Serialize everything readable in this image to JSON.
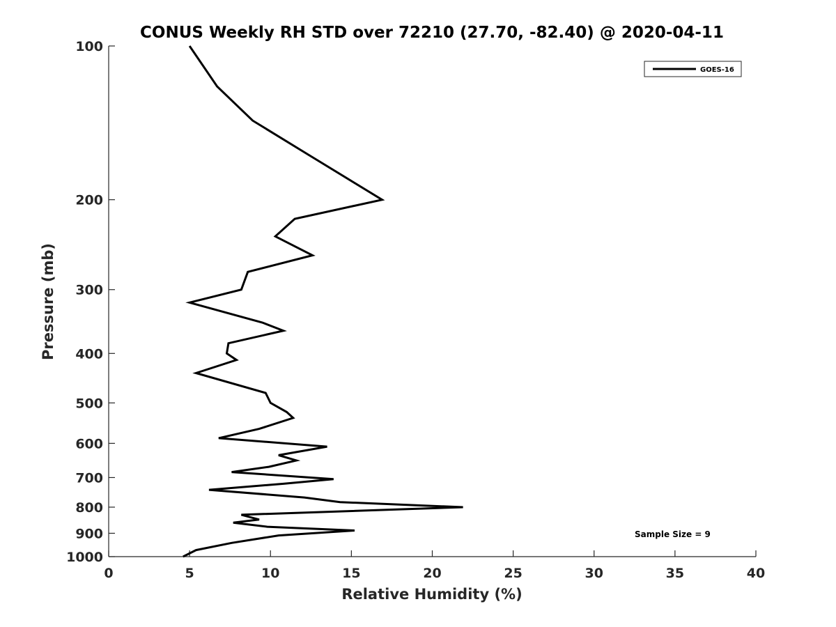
{
  "chart_data": {
    "type": "line",
    "title": "CONUS Weekly RH STD over 72210 (27.70, -82.40) @ 2020-04-11",
    "xlabel": "Relative Humidity (%)",
    "ylabel": "Pressure (mb)",
    "xlim": [
      0,
      40
    ],
    "ylim": [
      100,
      1000
    ],
    "yscale": "log",
    "y_reversed": true,
    "xticks": [
      "0",
      "5",
      "10",
      "15",
      "20",
      "25",
      "30",
      "35",
      "40"
    ],
    "yticks": [
      "100",
      "200",
      "300",
      "400",
      "500",
      "600",
      "700",
      "800",
      "900",
      "1000"
    ],
    "grid": false,
    "legend": {
      "position": "top-right",
      "entries": [
        "GOES-16"
      ]
    },
    "annotation": "Sample Size = 9",
    "series": [
      {
        "name": "GOES-16",
        "color": "#000000",
        "points": [
          [
            5.0,
            100
          ],
          [
            6.7,
            120
          ],
          [
            8.9,
            140
          ],
          [
            12.3,
            163
          ],
          [
            16.9,
            200
          ],
          [
            11.5,
            218
          ],
          [
            10.3,
            236
          ],
          [
            12.6,
            257
          ],
          [
            8.6,
            277
          ],
          [
            8.2,
            300
          ],
          [
            5.0,
            318
          ],
          [
            9.5,
            348
          ],
          [
            10.8,
            361
          ],
          [
            7.4,
            382
          ],
          [
            7.3,
            400
          ],
          [
            7.9,
            412
          ],
          [
            5.4,
            437
          ],
          [
            9.7,
            478
          ],
          [
            10.0,
            500
          ],
          [
            11.0,
            521
          ],
          [
            11.4,
            535
          ],
          [
            9.3,
            562
          ],
          [
            6.8,
            586
          ],
          [
            13.5,
            609
          ],
          [
            10.5,
            633
          ],
          [
            11.6,
            648
          ],
          [
            9.9,
            667
          ],
          [
            7.6,
            683
          ],
          [
            13.9,
            705
          ],
          [
            10.8,
            720
          ],
          [
            6.2,
            740
          ],
          [
            12.1,
            766
          ],
          [
            14.3,
            782
          ],
          [
            21.9,
            800
          ],
          [
            8.2,
            828
          ],
          [
            9.3,
            846
          ],
          [
            7.7,
            858
          ],
          [
            9.8,
            874
          ],
          [
            15.2,
            889
          ],
          [
            10.5,
            909
          ],
          [
            7.6,
            940
          ],
          [
            5.4,
            971
          ],
          [
            4.6,
            1000
          ]
        ]
      }
    ]
  }
}
